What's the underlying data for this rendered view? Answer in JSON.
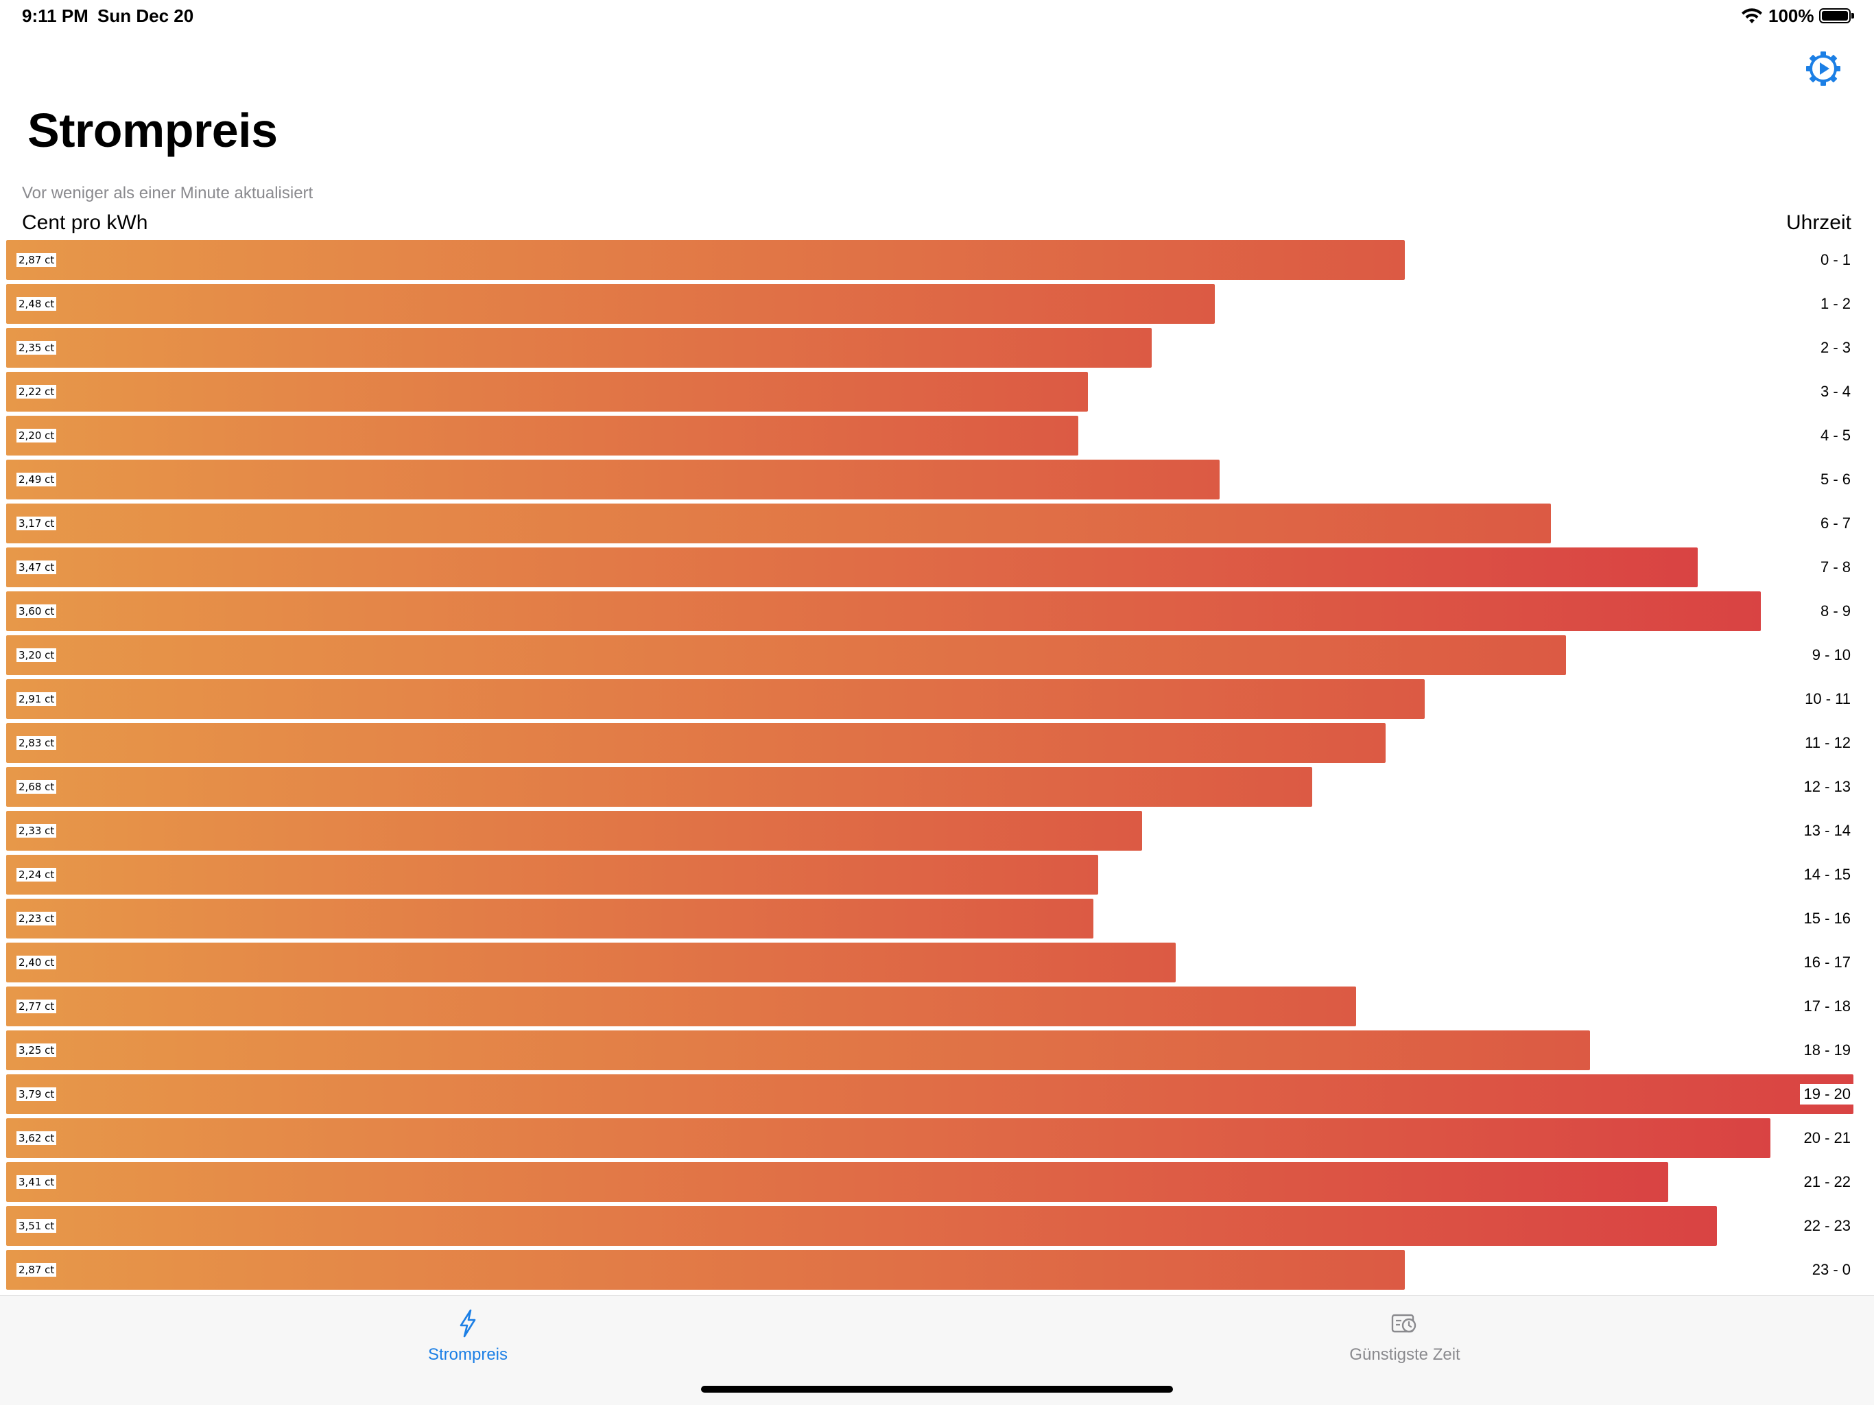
{
  "status_bar": {
    "time": "9:11 PM",
    "date": "Sun Dec 20",
    "battery": "100%"
  },
  "header": {
    "title": "Strompreis",
    "updated_text": "Vor weniger als einer Minute aktualisiert",
    "left_column_label": "Cent pro kWh",
    "right_column_label": "Uhrzeit"
  },
  "colors": {
    "bar_start": "#e79849",
    "bar_end": "#d94343",
    "accent": "#1c7fe5",
    "inactive": "#8a8a8e"
  },
  "icons": {
    "settings": "gear-play-icon",
    "tab_strompreis": "lightning-bolt-icon",
    "tab_guenstig": "clock-rectangle-icon"
  },
  "current_hour_index": 19,
  "chart_data": {
    "type": "bar",
    "orientation": "horizontal",
    "categories": [
      "0 - 1",
      "1 - 2",
      "2 - 3",
      "3 - 4",
      "4 - 5",
      "5 - 6",
      "6 - 7",
      "7 - 8",
      "8 - 9",
      "9 - 10",
      "10 - 11",
      "11 - 12",
      "12 - 13",
      "13 - 14",
      "14 - 15",
      "15 - 16",
      "16 - 17",
      "17 - 18",
      "18 - 19",
      "19 - 20",
      "20 - 21",
      "21 - 22",
      "22 - 23",
      "23 - 0"
    ],
    "values": [
      2.87,
      2.48,
      2.35,
      2.22,
      2.2,
      2.49,
      3.17,
      3.47,
      3.6,
      3.2,
      2.91,
      2.83,
      2.68,
      2.33,
      2.24,
      2.23,
      2.4,
      2.77,
      3.25,
      3.79,
      3.62,
      3.41,
      3.51,
      2.87
    ],
    "value_labels": [
      "2,87 ct",
      "2,48 ct",
      "2,35 ct",
      "2,22 ct",
      "2,20 ct",
      "2,49 ct",
      "3,17 ct",
      "3,47 ct",
      "3,60 ct",
      "3,20 ct",
      "2,91 ct",
      "2,83 ct",
      "2,68 ct",
      "2,33 ct",
      "2,24 ct",
      "2,23 ct",
      "2,40 ct",
      "2,77 ct",
      "3,25 ct",
      "3,79 ct",
      "3,62 ct",
      "3,41 ct",
      "3,51 ct",
      "2,87 ct"
    ],
    "xlabel": "Cent pro kWh",
    "ylabel": "Uhrzeit",
    "xlim": [
      0,
      3.79
    ],
    "grid": false,
    "legend": "none"
  },
  "tabs": [
    {
      "label": "Strompreis",
      "active": true
    },
    {
      "label": "Günstigste Zeit",
      "active": false
    }
  ]
}
